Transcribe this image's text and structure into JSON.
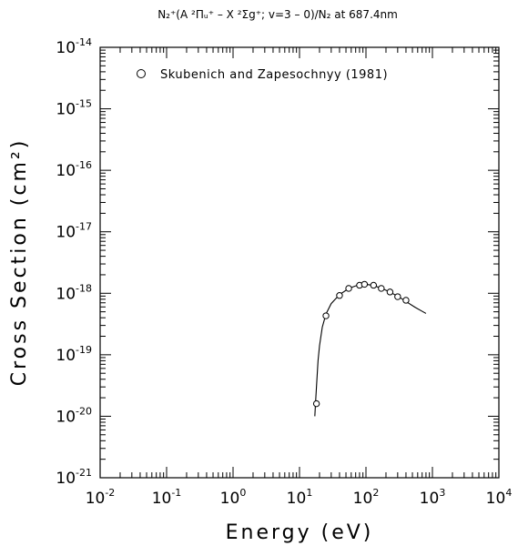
{
  "chart_data": {
    "type": "scatter",
    "title": "N₂⁺(A ²Πᵤ⁺ – X ²Σg⁺; v=3 – 0)/N₂ at 687.4nm",
    "xlabel": "Energy (eV)",
    "ylabel": "Cross Section (cm²)",
    "xscale": "log",
    "yscale": "log",
    "xlim": [
      0.01,
      10000
    ],
    "ylim": [
      1e-21,
      1e-14
    ],
    "x_ticks": [
      {
        "base": "10",
        "exp": "-2"
      },
      {
        "base": "10",
        "exp": "-1"
      },
      {
        "base": "10",
        "exp": "0"
      },
      {
        "base": "10",
        "exp": "1"
      },
      {
        "base": "10",
        "exp": "2"
      },
      {
        "base": "10",
        "exp": "3"
      },
      {
        "base": "10",
        "exp": "4"
      }
    ],
    "y_ticks": [
      {
        "base": "10",
        "exp": "-21"
      },
      {
        "base": "10",
        "exp": "-20"
      },
      {
        "base": "10",
        "exp": "-19"
      },
      {
        "base": "10",
        "exp": "-18"
      },
      {
        "base": "10",
        "exp": "-17"
      },
      {
        "base": "10",
        "exp": "-16"
      },
      {
        "base": "10",
        "exp": "-15"
      },
      {
        "base": "10",
        "exp": "-14"
      }
    ],
    "legend_position": "top",
    "series": [
      {
        "name": "Skubenich and Zapesochnyy (1981)",
        "marker": "open-circle",
        "x": [
          18,
          25,
          40,
          55,
          80,
          95,
          130,
          170,
          230,
          300,
          400
        ],
        "y": [
          1.6e-20,
          4.3e-19,
          9.2e-19,
          1.2e-18,
          1.35e-18,
          1.4e-18,
          1.35e-18,
          1.2e-18,
          1.05e-18,
          8.8e-19,
          7.7e-19
        ]
      },
      {
        "marker": "line",
        "x": [
          17,
          17.5,
          18,
          19,
          20,
          22,
          25,
          30,
          40,
          55,
          70,
          90,
          110,
          140,
          180,
          240,
          320,
          420,
          550,
          700,
          800
        ],
        "y": [
          1e-20,
          1.8e-20,
          3e-20,
          8e-20,
          1.4e-19,
          2.8e-19,
          4.6e-19,
          6.8e-19,
          9.5e-19,
          1.2e-18,
          1.32e-18,
          1.38e-18,
          1.38e-18,
          1.3e-18,
          1.18e-18,
          1.02e-18,
          8.6e-19,
          7.1e-19,
          5.9e-19,
          5.1e-19,
          4.7e-19
        ]
      }
    ]
  }
}
